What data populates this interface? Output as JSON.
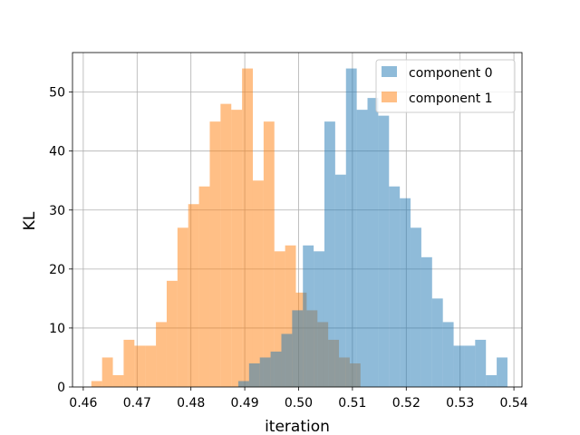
{
  "chart_data": {
    "type": "bar",
    "title": "",
    "xlabel": "iteration",
    "ylabel": "KL",
    "xlim": [
      0.458,
      0.5415
    ],
    "ylim": [
      0,
      56.7
    ],
    "xticks": [
      0.46,
      0.47,
      0.48,
      0.49,
      0.5,
      0.51,
      0.52,
      0.53,
      0.54
    ],
    "xtick_labels": [
      "0.46",
      "0.47",
      "0.48",
      "0.49",
      "0.50",
      "0.51",
      "0.52",
      "0.53",
      "0.54"
    ],
    "yticks": [
      0,
      10,
      20,
      30,
      40,
      50
    ],
    "ytick_labels": [
      "0",
      "10",
      "20",
      "30",
      "40",
      "50"
    ],
    "grid": true,
    "legend": "top-right",
    "colors": {
      "component_0": "#1f77b4",
      "component_1": "#ff7f0e",
      "bar_alpha": 0.5,
      "grid": "#b0b0b0",
      "axis": "#000000"
    },
    "series": [
      {
        "name": "component 1",
        "color": "#ff7f0e",
        "bin_edges": [
          0.4615,
          0.4635,
          0.4655,
          0.4675,
          0.4695,
          0.4715,
          0.4735,
          0.4755,
          0.4775,
          0.4795,
          0.4815,
          0.4835,
          0.4855,
          0.4875,
          0.4895,
          0.4915,
          0.4935,
          0.4955,
          0.4975,
          0.4995,
          0.5015,
          0.5035,
          0.5055,
          0.5075,
          0.5095,
          0.5115
        ],
        "values": [
          1,
          5,
          2,
          8,
          7,
          7,
          11,
          18,
          27,
          31,
          34,
          45,
          48,
          47,
          54,
          35,
          45,
          23,
          24,
          16,
          13,
          11,
          8,
          5,
          4,
          1
        ]
      },
      {
        "name": "component 0",
        "color": "#1f77b4",
        "bin_edges": [
          0.4888,
          0.4908,
          0.4928,
          0.4948,
          0.4968,
          0.4988,
          0.5008,
          0.5028,
          0.5048,
          0.5068,
          0.5088,
          0.5108,
          0.5128,
          0.5148,
          0.5168,
          0.5188,
          0.5208,
          0.5228,
          0.5248,
          0.5268,
          0.5288,
          0.5308,
          0.5328,
          0.5348,
          0.5368,
          0.5388
        ],
        "values": [
          1,
          4,
          5,
          6,
          9,
          13,
          24,
          23,
          45,
          36,
          54,
          47,
          49,
          46,
          34,
          32,
          27,
          22,
          15,
          11,
          7,
          7,
          8,
          2,
          5,
          1
        ]
      }
    ],
    "legend_entries": [
      "component 0",
      "component 1"
    ]
  }
}
